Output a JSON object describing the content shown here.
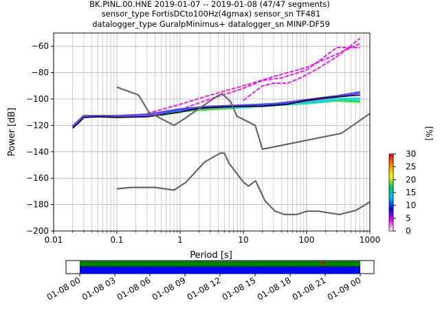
{
  "title_lines": [
    "BK.PINL.00.HNE   2019-01-07 -- 2019-01-08  (47/47 segments)",
    "sensor_type FortisDCto100Hz(4gmax) sensor_sn TF481",
    "datalogger_type GuralpMinimus+ datalogger_sn MINP-DF59"
  ],
  "chart_data": {
    "type": "heatmap",
    "xlabel": "Period [s]",
    "ylabel": "Power [dB]",
    "xscale": "log",
    "xlim": [
      0.01,
      1000
    ],
    "ylim": [
      -200,
      -50
    ],
    "grid": true,
    "x_ticks": [
      {
        "v": 0.01,
        "label": "0.01"
      },
      {
        "v": 0.1,
        "label": "0.1"
      },
      {
        "v": 1,
        "label": "1"
      },
      {
        "v": 10,
        "label": "10"
      },
      {
        "v": 100,
        "label": "100"
      },
      {
        "v": 1000,
        "label": "1000"
      }
    ],
    "y_ticks": [
      {
        "v": -200,
        "label": "−200"
      },
      {
        "v": -180,
        "label": "−180"
      },
      {
        "v": -160,
        "label": "−160"
      },
      {
        "v": -140,
        "label": "−140"
      },
      {
        "v": -120,
        "label": "−120"
      },
      {
        "v": -100,
        "label": "−100"
      },
      {
        "v": -80,
        "label": "−80"
      },
      {
        "v": -60,
        "label": "−60"
      }
    ],
    "nhnm": {
      "color": "#666666",
      "points": [
        [
          0.1,
          -91
        ],
        [
          0.22,
          -97
        ],
        [
          0.32,
          -110
        ],
        [
          0.8,
          -120
        ],
        [
          1.25,
          -114
        ],
        [
          3.8,
          -98
        ],
        [
          4.6,
          -96
        ],
        [
          6.3,
          -102
        ],
        [
          7.9,
          -113
        ],
        [
          15.4,
          -120
        ],
        [
          20,
          -138
        ],
        [
          354,
          -126
        ],
        [
          1000,
          -111
        ]
      ]
    },
    "nlnm": {
      "color": "#666666",
      "points": [
        [
          0.1,
          -168
        ],
        [
          0.17,
          -167
        ],
        [
          0.4,
          -167
        ],
        [
          0.8,
          -169
        ],
        [
          1.24,
          -163
        ],
        [
          2.4,
          -148
        ],
        [
          4.3,
          -141
        ],
        [
          5,
          -141
        ],
        [
          6,
          -149
        ],
        [
          10,
          -163
        ],
        [
          12,
          -166
        ],
        [
          15.6,
          -162
        ],
        [
          21.9,
          -177
        ],
        [
          31.6,
          -185
        ],
        [
          45,
          -187.5
        ],
        [
          70,
          -187.5
        ],
        [
          101,
          -185
        ],
        [
          154,
          -185
        ],
        [
          328,
          -187.5
        ],
        [
          600,
          -184.4
        ],
        [
          1000,
          -178
        ]
      ]
    },
    "psd_traces": {
      "median": {
        "color": "#000000",
        "points": [
          [
            0.02,
            -122
          ],
          [
            0.025,
            -118
          ],
          [
            0.03,
            -114
          ],
          [
            0.05,
            -113.5
          ],
          [
            0.1,
            -114
          ],
          [
            0.3,
            -113.5
          ],
          [
            1,
            -110
          ],
          [
            2,
            -107
          ],
          [
            5,
            -106
          ],
          [
            10,
            -105.5
          ],
          [
            20,
            -105.5
          ],
          [
            50,
            -104
          ],
          [
            100,
            -101
          ],
          [
            200,
            -99
          ],
          [
            700,
            -97
          ]
        ]
      },
      "mode_band": {
        "color": "#4433ff",
        "points": [
          [
            0.02,
            -121
          ],
          [
            0.03,
            -113
          ],
          [
            0.1,
            -113
          ],
          [
            0.3,
            -112
          ],
          [
            1,
            -108
          ],
          [
            3,
            -106
          ],
          [
            10,
            -105
          ],
          [
            30,
            -104
          ],
          [
            100,
            -101
          ],
          [
            300,
            -98
          ],
          [
            700,
            -95
          ]
        ]
      },
      "upper_cyan": {
        "color": "#00dddd",
        "points": [
          [
            0.5,
            -111
          ],
          [
            1,
            -108
          ],
          [
            3,
            -106
          ],
          [
            10,
            -106
          ],
          [
            30,
            -104
          ],
          [
            100,
            -103
          ],
          [
            300,
            -100
          ],
          [
            700,
            -100
          ]
        ]
      },
      "upper_green": {
        "color": "#33cc33",
        "points": [
          [
            0.5,
            -112
          ],
          [
            1,
            -109
          ],
          [
            5,
            -107
          ],
          [
            20,
            -105
          ],
          [
            100,
            -103
          ],
          [
            300,
            -101
          ],
          [
            700,
            -102
          ]
        ]
      },
      "outlier_1": {
        "color": "#ee00ee",
        "points": [
          [
            0.3,
            -111
          ],
          [
            1,
            -104
          ],
          [
            3,
            -97
          ],
          [
            10,
            -90
          ],
          [
            30,
            -83
          ],
          [
            100,
            -76
          ],
          [
            300,
            -66
          ],
          [
            700,
            -58
          ]
        ]
      },
      "outlier_2": {
        "color": "#ee00ee",
        "points": [
          [
            1,
            -108
          ],
          [
            3,
            -100
          ],
          [
            10,
            -92
          ],
          [
            20,
            -86
          ],
          [
            40,
            -84
          ],
          [
            100,
            -78
          ],
          [
            300,
            -61
          ],
          [
            700,
            -61
          ]
        ]
      },
      "outlier_3": {
        "color": "#ee00ee",
        "points": [
          [
            10,
            -101
          ],
          [
            20,
            -90
          ],
          [
            30,
            -88
          ],
          [
            50,
            -88
          ],
          [
            80,
            -84
          ],
          [
            150,
            -77
          ],
          [
            300,
            -68
          ],
          [
            700,
            -54
          ]
        ]
      }
    },
    "colorbar": {
      "label": "[%]",
      "range": [
        0,
        30
      ],
      "ticks": [
        {
          "v": 0,
          "label": "0"
        },
        {
          "v": 5,
          "label": "5"
        },
        {
          "v": 10,
          "label": "10"
        },
        {
          "v": 15,
          "label": "15"
        },
        {
          "v": 20,
          "label": "20"
        },
        {
          "v": 25,
          "label": "25"
        },
        {
          "v": 30,
          "label": "30"
        }
      ],
      "colors": [
        "#ffffff",
        "#ee00ee",
        "#0000ee",
        "#00bbff",
        "#00cc66",
        "#ffff00",
        "#ff8800",
        "#ee0000"
      ]
    },
    "timeline": {
      "ticks": [
        "01-08 00",
        "01-08 03",
        "01-08 06",
        "01-08 09",
        "01-08 12",
        "01-08 15",
        "01-08 18",
        "01-08 21",
        "01-09 00"
      ],
      "data_color": "#0000ff",
      "data_gap_color": "#008000",
      "marker_color": "#cc0000",
      "marker_hour": 20.8
    }
  }
}
